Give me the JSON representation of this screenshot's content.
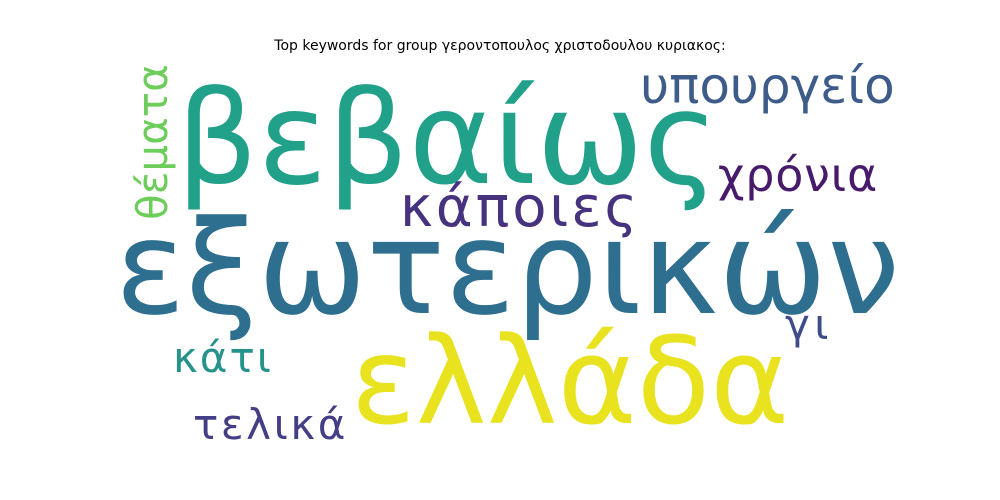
{
  "title": "Top keywords for group γεροντοπουλος χριστοδουλου κυριακος:",
  "words": [
    {
      "text": "εξωτερικών",
      "color": "#2e6e8e",
      "rotated": false
    },
    {
      "text": "ελλάδα",
      "color": "#e8e31e",
      "rotated": false
    },
    {
      "text": "βεβαίως",
      "color": "#21a08a",
      "rotated": false
    },
    {
      "text": "υπουργείο",
      "color": "#3d5c8a",
      "rotated": false
    },
    {
      "text": "κάποιες",
      "color": "#46327e",
      "rotated": false
    },
    {
      "text": "χρόνια",
      "color": "#481a6c",
      "rotated": false
    },
    {
      "text": "θέματα",
      "color": "#6ccd5a",
      "rotated": true
    },
    {
      "text": "κάτι",
      "color": "#25938c",
      "rotated": false
    },
    {
      "text": "τελικά",
      "color": "#433e85",
      "rotated": false
    },
    {
      "text": "γι",
      "color": "#3e4c8a",
      "rotated": false
    }
  ]
}
